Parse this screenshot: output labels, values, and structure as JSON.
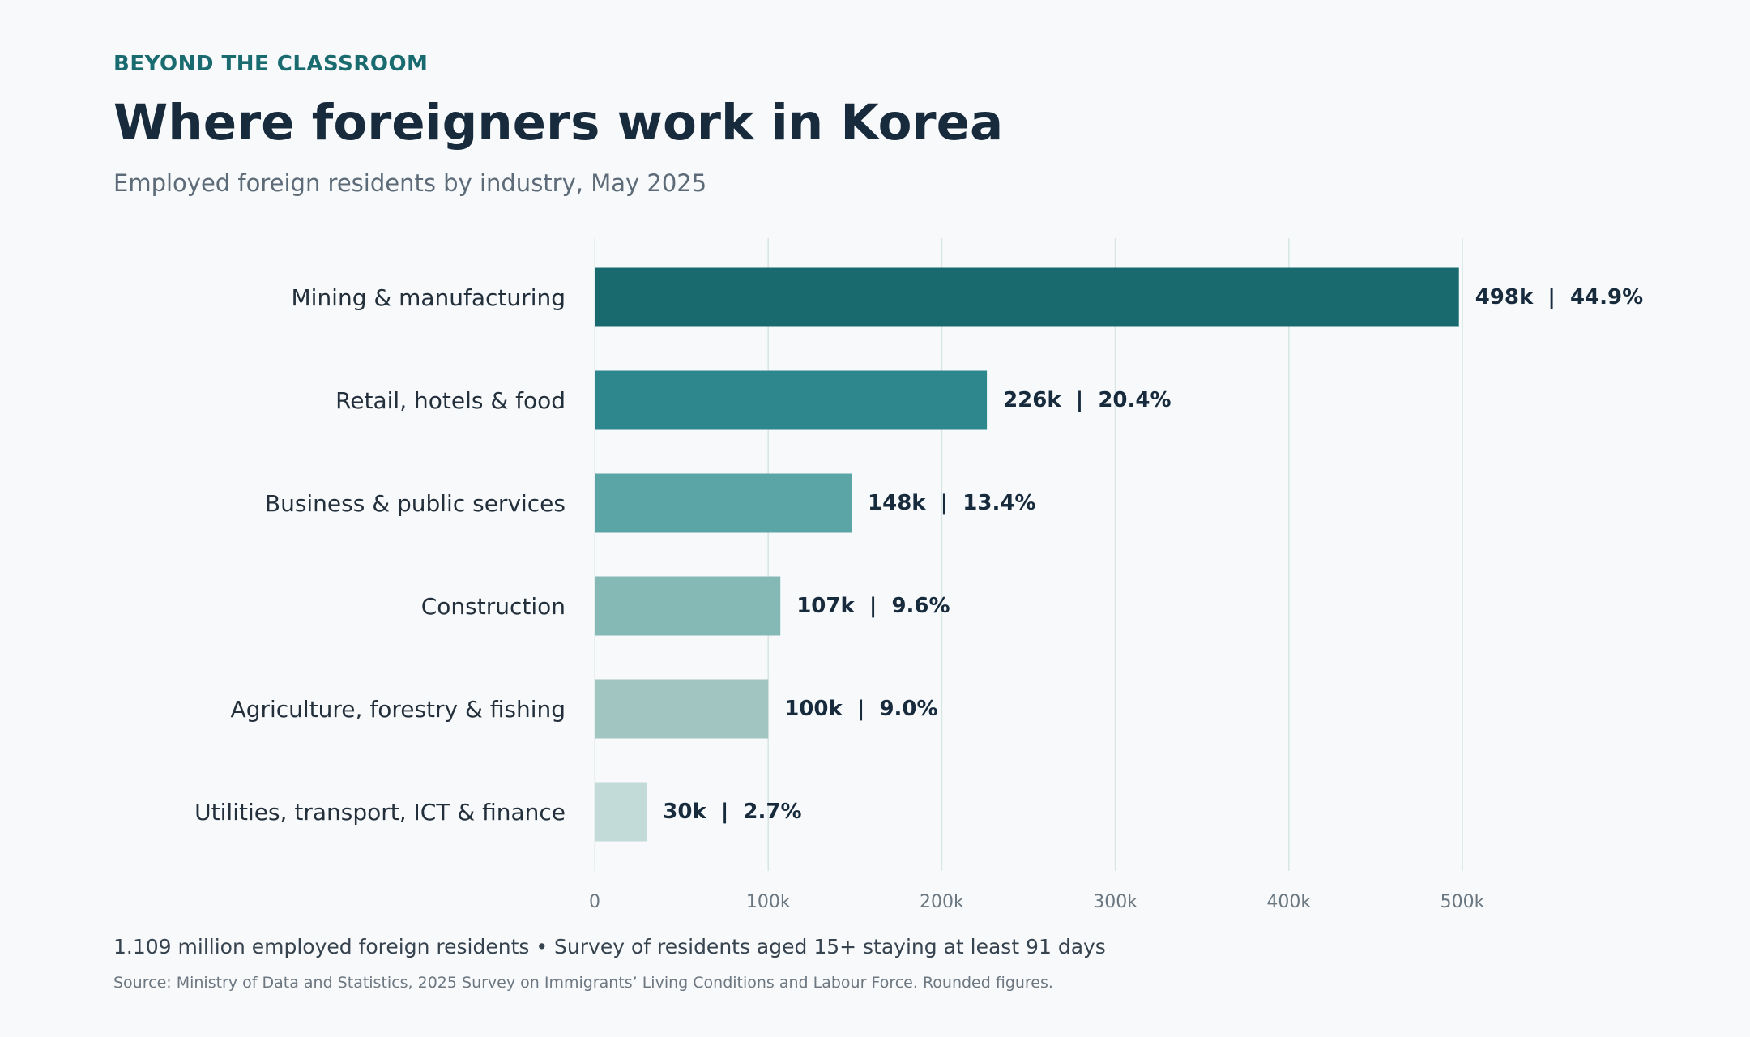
{
  "header": {
    "kicker": "BEYOND THE CLASSROOM",
    "title": "Where foreigners work in Korea",
    "subtitle": "Employed foreign residents by industry, May 2025"
  },
  "chart_data": {
    "type": "bar",
    "orientation": "horizontal",
    "categories": [
      "Mining & manufacturing",
      "Retail, hotels & food",
      "Business & public services",
      "Construction",
      "Agriculture, forestry & fishing",
      "Utilities, transport, ICT & finance"
    ],
    "values": [
      498,
      226,
      148,
      107,
      100,
      30
    ],
    "shares": [
      44.9,
      20.4,
      13.4,
      9.6,
      9.0,
      2.7
    ],
    "data_labels": [
      "498k  |  44.9%",
      "226k  |  20.4%",
      "148k  |  13.4%",
      "107k  |  9.6%",
      "100k  |  9.0%",
      "30k  |  2.7%"
    ],
    "xlim": [
      0,
      500
    ],
    "xticks": [
      0,
      100,
      200,
      300,
      400,
      500
    ],
    "xtick_labels": [
      "0",
      "100k",
      "200k",
      "300k",
      "400k",
      "500k"
    ],
    "grid": "vertical",
    "xlabel": "",
    "ylabel": "",
    "colors": [
      "#186a6e",
      "#2e878d",
      "#5ba5a7",
      "#85b9b6",
      "#a1c5c0",
      "#c3dbd8"
    ],
    "gridline_color": "#d6e6e4",
    "tick_label_color": "#6b7780",
    "category_label_color": "#23303c",
    "data_label_color": "#172b3d"
  },
  "footer": {
    "note": "1.109 million employed foreign residents  •  Survey of residents aged 15+ staying at least 91 days",
    "source": "Source: Ministry of Data and Statistics, 2025 Survey on Immigrants’ Living Conditions and Labour Force. Rounded figures."
  }
}
